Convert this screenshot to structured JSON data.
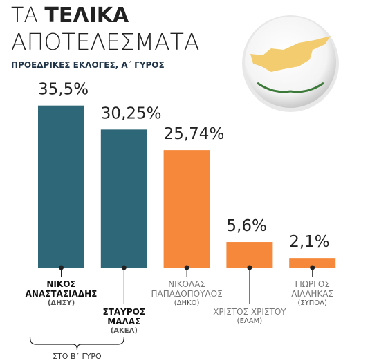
{
  "chart_data": {
    "type": "bar",
    "title": {
      "prefix": "ΤΑ",
      "emphasis": "ΤΕΛΙΚΑ",
      "rest": "ΑΠΟΤΕΛΕΣΜΑΤΑ"
    },
    "subtitle": "ΠΡΟΕΔΡΙΚΕΣ ΕΚΛΟΓΕΣ, Α΄ ΓΥΡΟΣ",
    "categories": [
      "ΝΙΚΟΣ ΑΝΑΣΤΑΣΙΑΔΗΣ",
      "ΣΤΑΥΡΟΣ ΜΑΛΑΣ",
      "ΝΙΚΟΛΑΣ ΠΑΠΑΔΟΠΟΥΛΟΣ",
      "ΧΡΙΣΤΟΣ ΧΡΙΣΤΟΥ",
      "ΓΙΩΡΓΟΣ ΛΙΛΛΗΚΑΣ"
    ],
    "parties": [
      "(ΔΗΣΥ)",
      "(ΑΚΕΛ)",
      "(ΔΗΚΟ)",
      "(ΕΛΑΜ)",
      "(ΣΥΠΟΛ)"
    ],
    "values": [
      35.5,
      30.25,
      25.74,
      5.6,
      2.1
    ],
    "value_labels": [
      "35,5%",
      "30,25%",
      "25,74%",
      "5,6%",
      "2,1%"
    ],
    "colors": [
      "#2e6778",
      "#2e6778",
      "#f5883b",
      "#f5883b",
      "#f5883b"
    ],
    "second_round": [
      true,
      true,
      false,
      false,
      false
    ],
    "annotation": "ΣΤΟ Β΄ ΓΥΡΟ"
  }
}
